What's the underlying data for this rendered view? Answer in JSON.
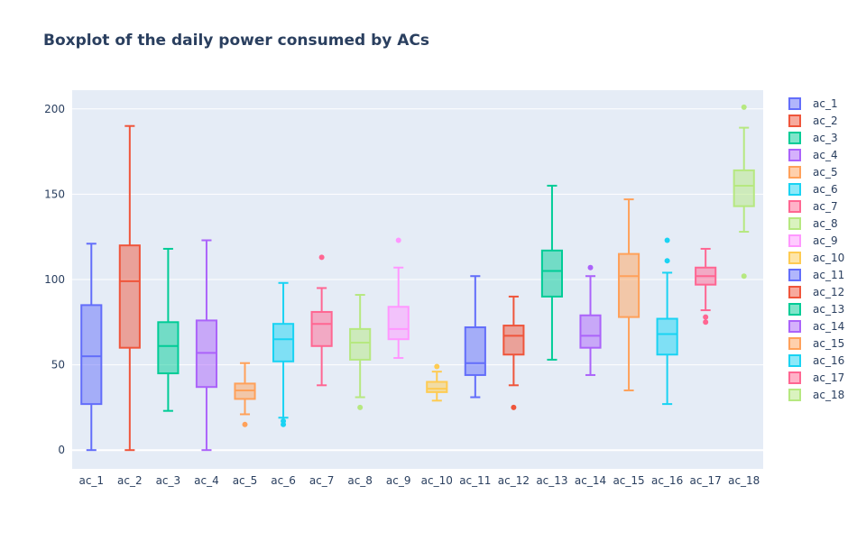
{
  "chart_data": {
    "type": "box",
    "title": "Boxplot of the daily power consumed by ACs",
    "xlabel": "",
    "ylabel": "",
    "ylim": [
      -11,
      211
    ],
    "yticks": [
      0,
      50,
      100,
      150,
      200
    ],
    "grid": true,
    "legend_position": "right",
    "categories": [
      "ac_1",
      "ac_2",
      "ac_3",
      "ac_4",
      "ac_5",
      "ac_6",
      "ac_7",
      "ac_8",
      "ac_9",
      "ac_10",
      "ac_11",
      "ac_12",
      "ac_13",
      "ac_14",
      "ac_15",
      "ac_16",
      "ac_17",
      "ac_18"
    ],
    "series": [
      {
        "name": "ac_1",
        "color": "#636efa",
        "min": 0,
        "q1": 27,
        "median": 55,
        "q3": 85,
        "max": 121,
        "outliers": []
      },
      {
        "name": "ac_2",
        "color": "#EF553B",
        "min": 0,
        "q1": 60,
        "median": 99,
        "q3": 120,
        "max": 190,
        "outliers": []
      },
      {
        "name": "ac_3",
        "color": "#00cc96",
        "min": 23,
        "q1": 45,
        "median": 61,
        "q3": 75,
        "max": 118,
        "outliers": []
      },
      {
        "name": "ac_4",
        "color": "#ab63fa",
        "min": 0,
        "q1": 37,
        "median": 57,
        "q3": 76,
        "max": 123,
        "outliers": []
      },
      {
        "name": "ac_5",
        "color": "#FFA15A",
        "min": 21,
        "q1": 30,
        "median": 35,
        "q3": 39,
        "max": 51,
        "outliers": [
          15
        ]
      },
      {
        "name": "ac_6",
        "color": "#19d3f3",
        "min": 19,
        "q1": 52,
        "median": 65,
        "q3": 74,
        "max": 98,
        "outliers": [
          15,
          17
        ]
      },
      {
        "name": "ac_7",
        "color": "#FF6692",
        "min": 38,
        "q1": 61,
        "median": 74,
        "q3": 81,
        "max": 95,
        "outliers": [
          113
        ]
      },
      {
        "name": "ac_8",
        "color": "#B6E880",
        "min": 31,
        "q1": 53,
        "median": 63,
        "q3": 71,
        "max": 91,
        "outliers": [
          25
        ]
      },
      {
        "name": "ac_9",
        "color": "#FF97FF",
        "min": 54,
        "q1": 65,
        "median": 71,
        "q3": 84,
        "max": 107,
        "outliers": [
          123
        ]
      },
      {
        "name": "ac_10",
        "color": "#FECB52",
        "min": 29,
        "q1": 34,
        "median": 36,
        "q3": 40,
        "max": 46,
        "outliers": [
          49
        ]
      },
      {
        "name": "ac_11",
        "color": "#636efa",
        "min": 31,
        "q1": 44,
        "median": 51,
        "q3": 72,
        "max": 102,
        "outliers": []
      },
      {
        "name": "ac_12",
        "color": "#EF553B",
        "min": 38,
        "q1": 56,
        "median": 67,
        "q3": 73,
        "max": 90,
        "outliers": [
          25
        ]
      },
      {
        "name": "ac_13",
        "color": "#00cc96",
        "min": 53,
        "q1": 90,
        "median": 105,
        "q3": 117,
        "max": 155,
        "outliers": []
      },
      {
        "name": "ac_14",
        "color": "#ab63fa",
        "min": 44,
        "q1": 60,
        "median": 67,
        "q3": 79,
        "max": 102,
        "outliers": [
          107
        ]
      },
      {
        "name": "ac_15",
        "color": "#FFA15A",
        "min": 35,
        "q1": 78,
        "median": 102,
        "q3": 115,
        "max": 147,
        "outliers": []
      },
      {
        "name": "ac_16",
        "color": "#19d3f3",
        "min": 27,
        "q1": 56,
        "median": 68,
        "q3": 77,
        "max": 104,
        "outliers": [
          111,
          123
        ]
      },
      {
        "name": "ac_17",
        "color": "#FF6692",
        "min": 82,
        "q1": 97,
        "median": 102,
        "q3": 107,
        "max": 118,
        "outliers": [
          75,
          78
        ]
      },
      {
        "name": "ac_18",
        "color": "#B6E880",
        "min": 128,
        "q1": 143,
        "median": 155,
        "q3": 164,
        "max": 189,
        "outliers": [
          102,
          201
        ]
      }
    ]
  }
}
